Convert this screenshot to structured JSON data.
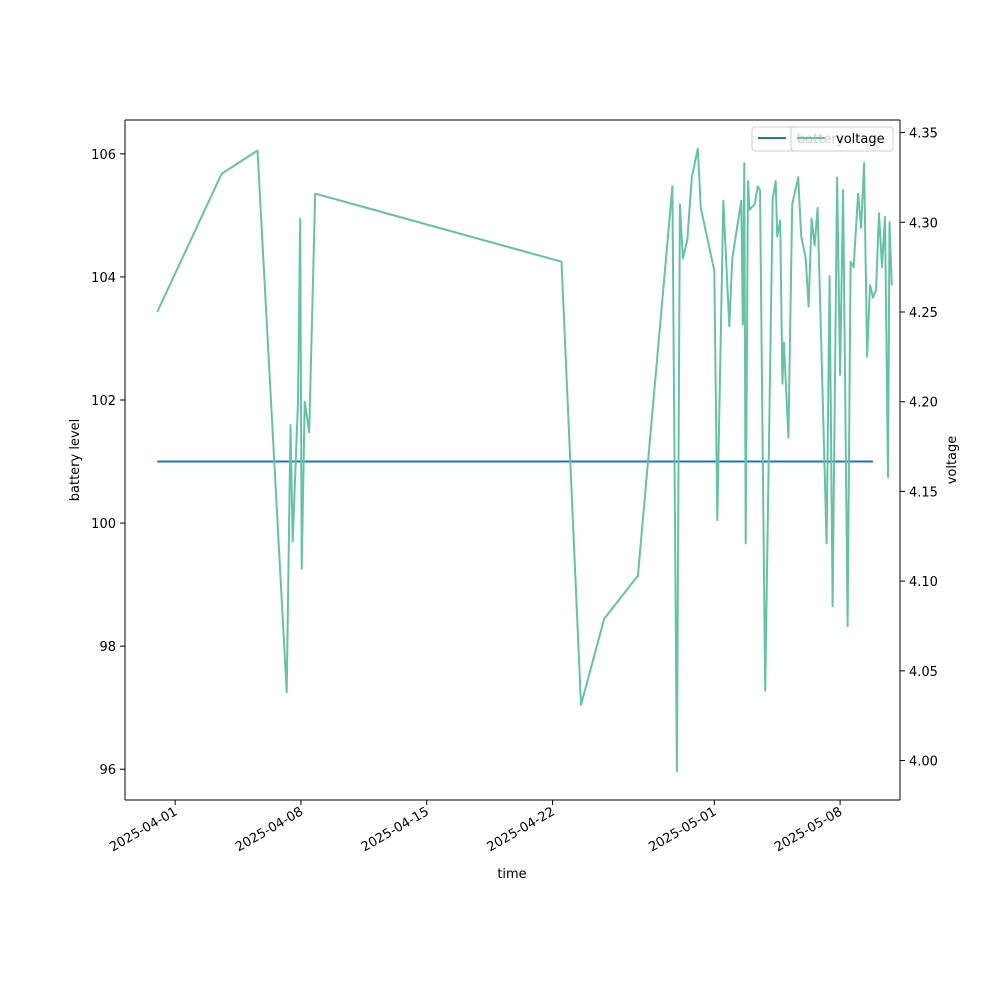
{
  "chart_data": {
    "type": "line",
    "xlabel": "time",
    "ylabel_left": "battery level",
    "ylabel_right": "voltage",
    "xlim": [
      "2025-03-29T05:00",
      "2025-05-11T08:00"
    ],
    "ylim_left": [
      95.5,
      106.55
    ],
    "ylim_right": [
      3.978,
      4.357
    ],
    "x_ticks": [
      "2025-04-01",
      "2025-04-08",
      "2025-04-15",
      "2025-04-22",
      "2025-05-01",
      "2025-05-08"
    ],
    "y_ticks_left": [
      96,
      98,
      100,
      102,
      104,
      106
    ],
    "y_ticks_right": [
      4.0,
      4.05,
      4.1,
      4.15,
      4.2,
      4.25,
      4.3,
      4.35
    ],
    "grid": false,
    "series": [
      {
        "name": "battery",
        "axis": "left",
        "color": "#1f77b4",
        "points": [
          [
            "2025-03-31T00:00",
            101
          ],
          [
            "2025-05-09T20:00",
            101
          ]
        ]
      },
      {
        "name": "voltage",
        "axis": "right",
        "color": "#66c2a5",
        "points": [
          [
            "2025-03-31T00:00",
            4.25
          ],
          [
            "2025-04-03T14:00",
            4.327
          ],
          [
            "2025-04-05T14:00",
            4.34
          ],
          [
            "2025-04-07T05:00",
            4.038
          ],
          [
            "2025-04-07T10:00",
            4.187
          ],
          [
            "2025-04-07T13:00",
            4.122
          ],
          [
            "2025-04-07T20:00",
            4.2
          ],
          [
            "2025-04-07T23:00",
            4.302
          ],
          [
            "2025-04-08T01:00",
            4.107
          ],
          [
            "2025-04-08T05:00",
            4.2
          ],
          [
            "2025-04-08T11:00",
            4.183
          ],
          [
            "2025-04-08T19:00",
            4.316
          ],
          [
            "2025-04-22T12:00",
            4.278
          ],
          [
            "2025-04-23T14:00",
            4.031
          ],
          [
            "2025-04-24T21:00",
            4.079
          ],
          [
            "2025-04-26T18:00",
            4.103
          ],
          [
            "2025-04-28T16:00",
            4.32
          ],
          [
            "2025-04-28T22:00",
            3.994
          ],
          [
            "2025-04-29T02:00",
            4.31
          ],
          [
            "2025-04-29T06:00",
            4.28
          ],
          [
            "2025-04-29T12:00",
            4.29
          ],
          [
            "2025-04-29T18:00",
            4.325
          ],
          [
            "2025-04-30T02:00",
            4.341
          ],
          [
            "2025-04-30T06:00",
            4.308
          ],
          [
            "2025-05-01T00:00",
            4.273
          ],
          [
            "2025-05-01T04:00",
            4.134
          ],
          [
            "2025-05-01T12:00",
            4.312
          ],
          [
            "2025-05-01T20:00",
            4.242
          ],
          [
            "2025-05-02T00:00",
            4.28
          ],
          [
            "2025-05-02T12:00",
            4.312
          ],
          [
            "2025-05-02T14:00",
            4.243
          ],
          [
            "2025-05-02T16:00",
            4.333
          ],
          [
            "2025-05-02T18:00",
            4.121
          ],
          [
            "2025-05-02T21:00",
            4.323
          ],
          [
            "2025-05-02T23:00",
            4.307
          ],
          [
            "2025-05-03T06:00",
            4.31
          ],
          [
            "2025-05-03T10:00",
            4.32
          ],
          [
            "2025-05-03T13:00",
            4.318
          ],
          [
            "2025-05-03T20:00",
            4.039
          ],
          [
            "2025-05-04T06:00",
            4.313
          ],
          [
            "2025-05-04T10:00",
            4.323
          ],
          [
            "2025-05-04T12:00",
            4.292
          ],
          [
            "2025-05-04T16:00",
            4.301
          ],
          [
            "2025-05-04T19:00",
            4.21
          ],
          [
            "2025-05-04T21:00",
            4.233
          ],
          [
            "2025-05-05T03:00",
            4.18
          ],
          [
            "2025-05-05T08:00",
            4.31
          ],
          [
            "2025-05-05T16:00",
            4.325
          ],
          [
            "2025-05-05T20:00",
            4.292
          ],
          [
            "2025-05-06T02:00",
            4.28
          ],
          [
            "2025-05-06T06:00",
            4.253
          ],
          [
            "2025-05-06T10:00",
            4.302
          ],
          [
            "2025-05-06T14:00",
            4.287
          ],
          [
            "2025-05-06T18:00",
            4.308
          ],
          [
            "2025-05-07T06:00",
            4.121
          ],
          [
            "2025-05-07T10:00",
            4.27
          ],
          [
            "2025-05-07T14:00",
            4.086
          ],
          [
            "2025-05-07T20:00",
            4.325
          ],
          [
            "2025-05-08T00:00",
            4.215
          ],
          [
            "2025-05-08T04:00",
            4.318
          ],
          [
            "2025-05-08T10:00",
            4.075
          ],
          [
            "2025-05-08T14:00",
            4.278
          ],
          [
            "2025-05-08T18:00",
            4.275
          ],
          [
            "2025-05-09T00:00",
            4.316
          ],
          [
            "2025-05-09T04:00",
            4.297
          ],
          [
            "2025-05-09T08:00",
            4.333
          ],
          [
            "2025-05-09T12:00",
            4.225
          ],
          [
            "2025-05-09T16:00",
            4.265
          ],
          [
            "2025-05-09T20:00",
            4.258
          ],
          [
            "2025-05-10T00:00",
            4.262
          ],
          [
            "2025-05-10T04:00",
            4.305
          ],
          [
            "2025-05-10T08:00",
            4.275
          ],
          [
            "2025-05-10T12:00",
            4.303
          ],
          [
            "2025-05-10T16:00",
            4.158
          ],
          [
            "2025-05-10T18:00",
            4.3
          ],
          [
            "2025-05-10T21:00",
            4.265
          ]
        ]
      }
    ],
    "legends": [
      {
        "entries": [
          "battery"
        ],
        "placement": "upper right"
      },
      {
        "entries": [
          "voltage"
        ],
        "placement": "upper right"
      }
    ]
  }
}
